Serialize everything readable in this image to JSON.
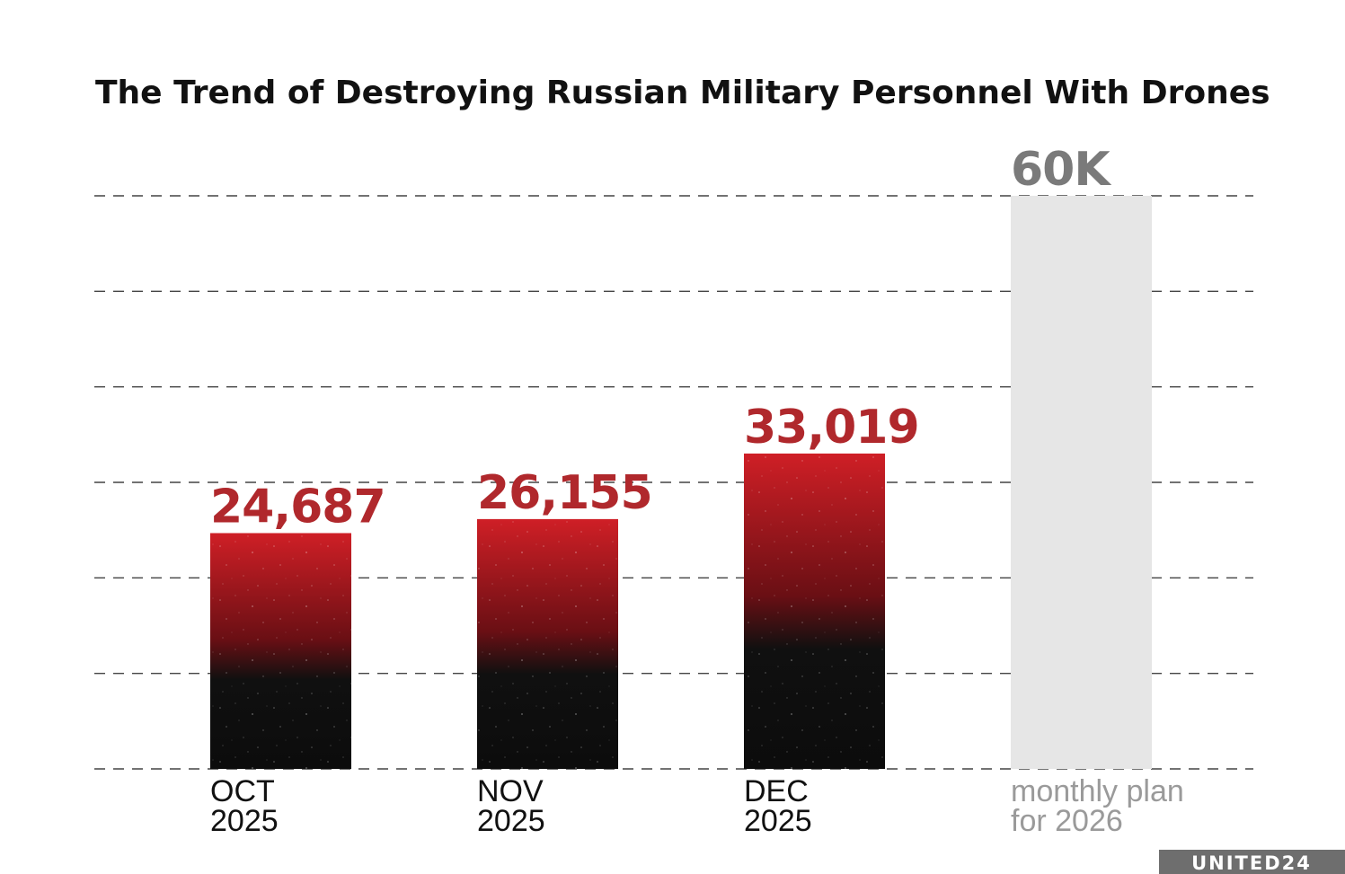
{
  "chart_data": {
    "type": "bar",
    "title": "The Trend of Destroying Russian Military Personnel With Drones",
    "categories": [
      {
        "line1": "OCT",
        "line2": "2025"
      },
      {
        "line1": "NOV",
        "line2": "2025"
      },
      {
        "line1": "DEC",
        "line2": "2025"
      },
      {
        "line1": "monthly plan",
        "line2": "for 2026"
      }
    ],
    "values": [
      24687,
      26155,
      33019,
      60000
    ],
    "value_labels": [
      "24,687",
      "26,155",
      "33,019",
      "60K"
    ],
    "ylim": [
      0,
      60000
    ],
    "grid": true,
    "gridlines": 7,
    "xlabel": "",
    "ylabel": "",
    "colors": {
      "bar_top": "#cf1f26",
      "bar_bottom": "#101010",
      "value_label": "#b0282c",
      "plan_bar": "#e6e6e6",
      "plan_label": "#7a7a7a",
      "category_label": "#111111",
      "plan_category_label": "#9a9a9a",
      "grid": "#444444"
    }
  },
  "logo": {
    "text": "UNITED24",
    "bg": "#6e6e6e"
  }
}
